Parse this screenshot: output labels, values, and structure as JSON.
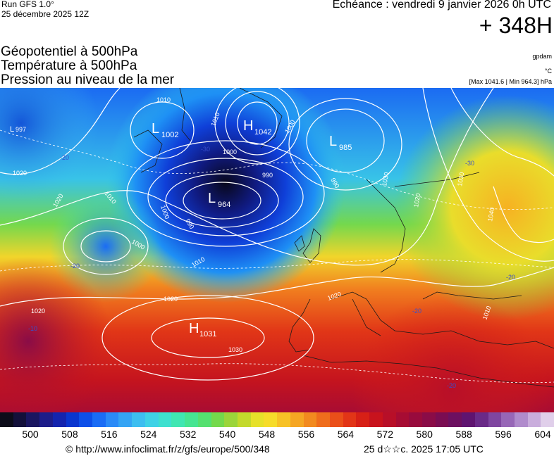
{
  "header": {
    "run": "Run GFS 1.0°",
    "run_date": "25 décembre 2025 12Z",
    "echeance": "Echéance : vendredi 9 janvier 2026 0h UTC",
    "lead": "+ 348H"
  },
  "params": [
    "Géopotentiel à 500hPa",
    "Température à 500hPa",
    "Pression au niveau de la mer"
  ],
  "units": {
    "geopotential": "gpdam",
    "temperature": "°C",
    "pressure": "[Max 1041.6 | Min 964.3] hPa"
  },
  "map": {
    "centers": [
      {
        "type": "L",
        "value": "1002"
      },
      {
        "type": "H",
        "value": "1042"
      },
      {
        "type": "L",
        "value": "985"
      },
      {
        "type": "L",
        "value": "964"
      },
      {
        "type": "H",
        "value": "1031"
      },
      {
        "type": "L",
        "value": "997"
      }
    ],
    "isobar_labels": [
      "1010",
      "1010",
      "1000",
      "1000",
      "990",
      "990",
      "990",
      "1000",
      "1010",
      "1020",
      "1020",
      "1020",
      "1020",
      "1030",
      "1030",
      "1020",
      "1020",
      "1030",
      "1040",
      "1010",
      "1000",
      "1010"
    ],
    "temp_labels": [
      "-20",
      "-10",
      "-20",
      "-30",
      "-20",
      "-20",
      "-30",
      "-20"
    ]
  },
  "colorbar": {
    "colors": [
      "#0c0c1a",
      "#13103a",
      "#1a1660",
      "#1d1d8a",
      "#1424ae",
      "#0a36cf",
      "#0d4fe8",
      "#1a6cf5",
      "#2a8af7",
      "#35a4f4",
      "#3dbef0",
      "#3fd2e6",
      "#3ee0cf",
      "#40e6b2",
      "#46e592",
      "#55e070",
      "#74d94c",
      "#9bd53a",
      "#c3d92c",
      "#e6e12a",
      "#f6dc2a",
      "#f7c226",
      "#f5a623",
      "#f28a1f",
      "#ef6d1c",
      "#ea4f19",
      "#e23517",
      "#d72016",
      "#c8131d",
      "#b80f28",
      "#a70c33",
      "#980b3d",
      "#8a0c47",
      "#7a0d52",
      "#6c1060",
      "#5f1470",
      "#6a2a88",
      "#7f46a0",
      "#9767b7",
      "#b08bcc",
      "#c9addc",
      "#e0cfea"
    ],
    "ticks": [
      "500",
      "508",
      "516",
      "524",
      "532",
      "540",
      "548",
      "556",
      "564",
      "572",
      "580",
      "588",
      "596",
      "604"
    ]
  },
  "footer": {
    "left": "© http://www.infoclimat.fr/z/gfs/europe/500/348",
    "right": "25 d☆☆c. 2025 17:05 UTC"
  }
}
